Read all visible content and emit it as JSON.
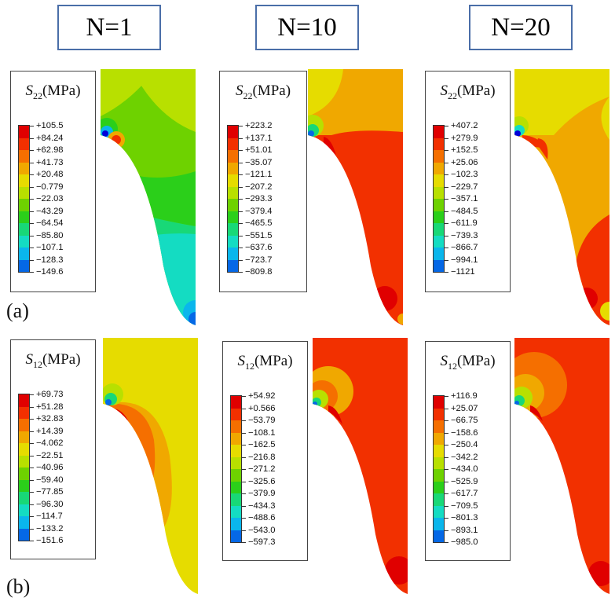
{
  "headers": [
    "N=1",
    "N=10",
    "N=20"
  ],
  "row_labels": [
    "(a)",
    "(b)"
  ],
  "legends": [
    {
      "row": 0,
      "col": 0,
      "symbol": "S",
      "sub": "22",
      "unit": "(MPa)",
      "ticks": [
        "+105.5",
        "+84.24",
        "+62.98",
        "+41.73",
        "+20.48",
        "−0.779",
        "−22.03",
        "−43.29",
        "−64.54",
        "−85.80",
        "−107.1",
        "−128.3",
        "−149.6"
      ]
    },
    {
      "row": 0,
      "col": 1,
      "symbol": "S",
      "sub": "22",
      "unit": "(MPa)",
      "ticks": [
        "+223.2",
        "+137.1",
        "+51.01",
        "−35.07",
        "−121.1",
        "−207.2",
        "−293.3",
        "−379.4",
        "−465.5",
        "−551.5",
        "−637.6",
        "−723.7",
        "−809.8"
      ]
    },
    {
      "row": 0,
      "col": 2,
      "symbol": "S",
      "sub": "22",
      "unit": "(MPa)",
      "ticks": [
        "+407.2",
        "+279.9",
        "+152.5",
        "+25.06",
        "−102.3",
        "−229.7",
        "−357.1",
        "−484.5",
        "−611.9",
        "−739.3",
        "−866.7",
        "−994.1",
        "−1121"
      ]
    },
    {
      "row": 1,
      "col": 0,
      "symbol": "S",
      "sub": "12",
      "unit": "(MPa)",
      "ticks": [
        "+69.73",
        "+51.28",
        "+32.83",
        "+14.39",
        "−4.062",
        "−22.51",
        "−40.96",
        "−59.40",
        "−77.85",
        "−96.30",
        "−114.7",
        "−133.2",
        "−151.6"
      ]
    },
    {
      "row": 1,
      "col": 1,
      "symbol": "S",
      "sub": "12",
      "unit": "(MPa)",
      "ticks": [
        "+54.92",
        "+0.566",
        "−53.79",
        "−108.1",
        "−162.5",
        "−216.8",
        "−271.2",
        "−325.6",
        "−379.9",
        "−434.3",
        "−488.6",
        "−543.0",
        "−597.3"
      ]
    },
    {
      "row": 1,
      "col": 2,
      "symbol": "S",
      "sub": "12",
      "unit": "(MPa)",
      "ticks": [
        "+116.9",
        "+25.07",
        "−66.75",
        "−158.6",
        "−250.4",
        "−342.2",
        "−434.0",
        "−525.9",
        "−617.7",
        "−709.5",
        "−801.3",
        "−893.1",
        "−985.0"
      ]
    }
  ],
  "colors": {
    "scale": [
      "#e00000",
      "#f23000",
      "#f56f00",
      "#f0a800",
      "#e6dc00",
      "#b8e000",
      "#6ed200",
      "#2bcf1a",
      "#18d877",
      "#14dcc2",
      "#0ab6ec",
      "#0568e6",
      "#0000d8"
    ],
    "frame": "#4a6ea8"
  }
}
